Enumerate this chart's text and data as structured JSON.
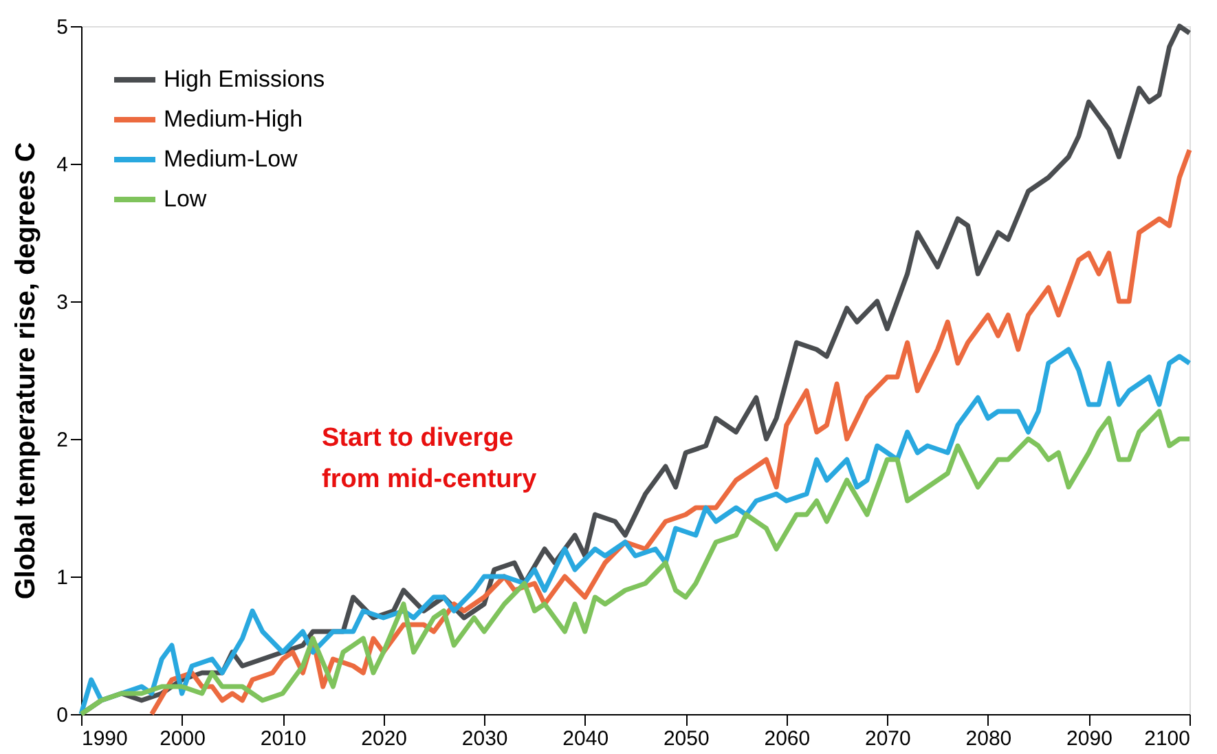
{
  "chart_data": {
    "type": "line",
    "ylabel": "Global temperature rise, degrees C",
    "xlim": [
      1990,
      2100
    ],
    "xticks": [
      1990,
      2000,
      2010,
      2020,
      2030,
      2040,
      2050,
      2060,
      2070,
      2080,
      2090,
      2100
    ],
    "ylim": [
      0,
      5
    ],
    "yticks": [
      0,
      1,
      2,
      3,
      4,
      5
    ],
    "grid": false,
    "legend": "top left",
    "line_style": "solid",
    "annotations": [
      "Start to diverge\nfrom mid-century"
    ],
    "series": [
      {
        "name": "High Emissions",
        "color": "#4a4d50",
        "x": [
          1990,
          1992,
          1994,
          1996,
          1998,
          2000,
          2002,
          2004,
          2005,
          2006,
          2008,
          2010,
          2012,
          2013,
          2016,
          2017,
          2019,
          2021,
          2022,
          2024,
          2026,
          2028,
          2030,
          2031,
          2033,
          2034,
          2036,
          2037,
          2039,
          2040,
          2041,
          2043,
          2044,
          2046,
          2048,
          2049,
          2050,
          2052,
          2053,
          2055,
          2057,
          2058,
          2059,
          2061,
          2063,
          2064,
          2066,
          2067,
          2069,
          2070,
          2072,
          2073,
          2075,
          2077,
          2078,
          2079,
          2081,
          2082,
          2084,
          2085,
          2086,
          2088,
          2089,
          2090,
          2092,
          2093,
          2095,
          2096,
          2097,
          2098,
          2099,
          2100
        ],
        "values": [
          0,
          0.1,
          0.15,
          0.1,
          0.15,
          0.25,
          0.3,
          0.3,
          0.45,
          0.35,
          0.4,
          0.45,
          0.5,
          0.6,
          0.6,
          0.85,
          0.7,
          0.75,
          0.9,
          0.75,
          0.85,
          0.7,
          0.8,
          1.05,
          1.1,
          0.95,
          1.2,
          1.1,
          1.3,
          1.15,
          1.45,
          1.4,
          1.3,
          1.6,
          1.8,
          1.65,
          1.9,
          1.95,
          2.15,
          2.05,
          2.3,
          2.0,
          2.15,
          2.7,
          2.65,
          2.6,
          2.95,
          2.85,
          3.0,
          2.8,
          3.2,
          3.5,
          3.25,
          3.6,
          3.55,
          3.2,
          3.5,
          3.45,
          3.8,
          3.85,
          3.9,
          4.05,
          4.2,
          4.45,
          4.25,
          4.05,
          4.55,
          4.45,
          4.5,
          4.85,
          5.0,
          4.95
        ]
      },
      {
        "name": "Medium-High",
        "color": "#ec6a3f",
        "x": [
          1997,
          1999,
          2001,
          2002,
          2003,
          2004,
          2005,
          2006,
          2007,
          2009,
          2010,
          2011,
          2012,
          2013,
          2014,
          2015,
          2017,
          2018,
          2019,
          2020,
          2022,
          2024,
          2025,
          2027,
          2028,
          2030,
          2032,
          2033,
          2035,
          2036,
          2038,
          2040,
          2042,
          2044,
          2046,
          2048,
          2050,
          2051,
          2053,
          2055,
          2057,
          2058,
          2059,
          2060,
          2062,
          2063,
          2064,
          2065,
          2066,
          2068,
          2070,
          2071,
          2072,
          2073,
          2075,
          2076,
          2077,
          2078,
          2080,
          2081,
          2082,
          2083,
          2084,
          2086,
          2087,
          2089,
          2090,
          2091,
          2092,
          2093,
          2094,
          2095,
          2096,
          2097,
          2098,
          2099,
          2100
        ],
        "values": [
          0,
          0.25,
          0.3,
          0.2,
          0.2,
          0.1,
          0.15,
          0.1,
          0.25,
          0.3,
          0.4,
          0.45,
          0.3,
          0.55,
          0.2,
          0.4,
          0.35,
          0.3,
          0.55,
          0.45,
          0.65,
          0.65,
          0.6,
          0.8,
          0.75,
          0.85,
          1.0,
          0.9,
          0.95,
          0.8,
          1.0,
          0.85,
          1.1,
          1.25,
          1.2,
          1.4,
          1.45,
          1.5,
          1.5,
          1.7,
          1.8,
          1.85,
          1.65,
          2.1,
          2.35,
          2.05,
          2.1,
          2.4,
          2.0,
          2.3,
          2.45,
          2.45,
          2.7,
          2.35,
          2.65,
          2.85,
          2.55,
          2.7,
          2.9,
          2.75,
          2.9,
          2.65,
          2.9,
          3.1,
          2.9,
          3.3,
          3.35,
          3.2,
          3.35,
          3.0,
          3.0,
          3.5,
          3.55,
          3.6,
          3.55,
          3.9,
          4.1
        ]
      },
      {
        "name": "Medium-Low",
        "color": "#29a8df",
        "x": [
          1990,
          1991,
          1992,
          1994,
          1996,
          1997,
          1998,
          1999,
          2000,
          2001,
          2003,
          2004,
          2006,
          2007,
          2008,
          2010,
          2012,
          2013,
          2015,
          2017,
          2018,
          2020,
          2022,
          2023,
          2025,
          2026,
          2027,
          2029,
          2030,
          2032,
          2034,
          2035,
          2036,
          2038,
          2039,
          2041,
          2042,
          2044,
          2045,
          2047,
          2048,
          2049,
          2051,
          2052,
          2053,
          2055,
          2056,
          2057,
          2059,
          2060,
          2062,
          2063,
          2064,
          2066,
          2067,
          2068,
          2069,
          2071,
          2072,
          2073,
          2074,
          2076,
          2077,
          2079,
          2080,
          2081,
          2083,
          2084,
          2085,
          2086,
          2087,
          2088,
          2089,
          2090,
          2091,
          2092,
          2093,
          2094,
          2096,
          2097,
          2098,
          2099,
          2100
        ],
        "values": [
          0,
          0.25,
          0.1,
          0.15,
          0.2,
          0.15,
          0.4,
          0.5,
          0.15,
          0.35,
          0.4,
          0.3,
          0.55,
          0.75,
          0.6,
          0.45,
          0.6,
          0.45,
          0.6,
          0.6,
          0.75,
          0.7,
          0.75,
          0.7,
          0.85,
          0.85,
          0.75,
          0.9,
          1.0,
          1.0,
          0.95,
          1.05,
          0.9,
          1.2,
          1.05,
          1.2,
          1.15,
          1.25,
          1.15,
          1.2,
          1.1,
          1.35,
          1.3,
          1.5,
          1.4,
          1.5,
          1.45,
          1.55,
          1.6,
          1.55,
          1.6,
          1.85,
          1.7,
          1.85,
          1.65,
          1.7,
          1.95,
          1.85,
          2.05,
          1.9,
          1.95,
          1.9,
          2.1,
          2.3,
          2.15,
          2.2,
          2.2,
          2.05,
          2.2,
          2.55,
          2.6,
          2.65,
          2.5,
          2.25,
          2.25,
          2.55,
          2.25,
          2.35,
          2.45,
          2.25,
          2.55,
          2.6,
          2.55
        ]
      },
      {
        "name": "Low",
        "color": "#7fc35c",
        "x": [
          1990,
          1992,
          1994,
          1996,
          1998,
          2000,
          2002,
          2003,
          2004,
          2006,
          2008,
          2010,
          2012,
          2013,
          2015,
          2016,
          2018,
          2019,
          2020,
          2022,
          2023,
          2025,
          2026,
          2027,
          2029,
          2030,
          2032,
          2034,
          2035,
          2036,
          2038,
          2039,
          2040,
          2041,
          2042,
          2044,
          2046,
          2048,
          2049,
          2050,
          2051,
          2053,
          2055,
          2056,
          2058,
          2059,
          2061,
          2062,
          2063,
          2064,
          2066,
          2068,
          2070,
          2071,
          2072,
          2074,
          2076,
          2077,
          2078,
          2079,
          2081,
          2082,
          2084,
          2085,
          2086,
          2087,
          2088,
          2090,
          2091,
          2092,
          2093,
          2094,
          2095,
          2097,
          2098,
          2099,
          2100
        ],
        "values": [
          0,
          0.1,
          0.15,
          0.15,
          0.2,
          0.2,
          0.15,
          0.3,
          0.2,
          0.2,
          0.1,
          0.15,
          0.35,
          0.55,
          0.2,
          0.45,
          0.55,
          0.3,
          0.45,
          0.8,
          0.45,
          0.7,
          0.75,
          0.5,
          0.7,
          0.6,
          0.8,
          0.95,
          0.75,
          0.8,
          0.6,
          0.8,
          0.6,
          0.85,
          0.8,
          0.9,
          0.95,
          1.1,
          0.9,
          0.85,
          0.95,
          1.25,
          1.3,
          1.45,
          1.35,
          1.2,
          1.45,
          1.45,
          1.55,
          1.4,
          1.7,
          1.45,
          1.85,
          1.85,
          1.55,
          1.65,
          1.75,
          1.95,
          1.8,
          1.65,
          1.85,
          1.85,
          2.0,
          1.95,
          1.85,
          1.9,
          1.65,
          1.9,
          2.05,
          2.15,
          1.85,
          1.85,
          2.05,
          2.2,
          1.95,
          2.0,
          2.0
        ]
      }
    ]
  }
}
